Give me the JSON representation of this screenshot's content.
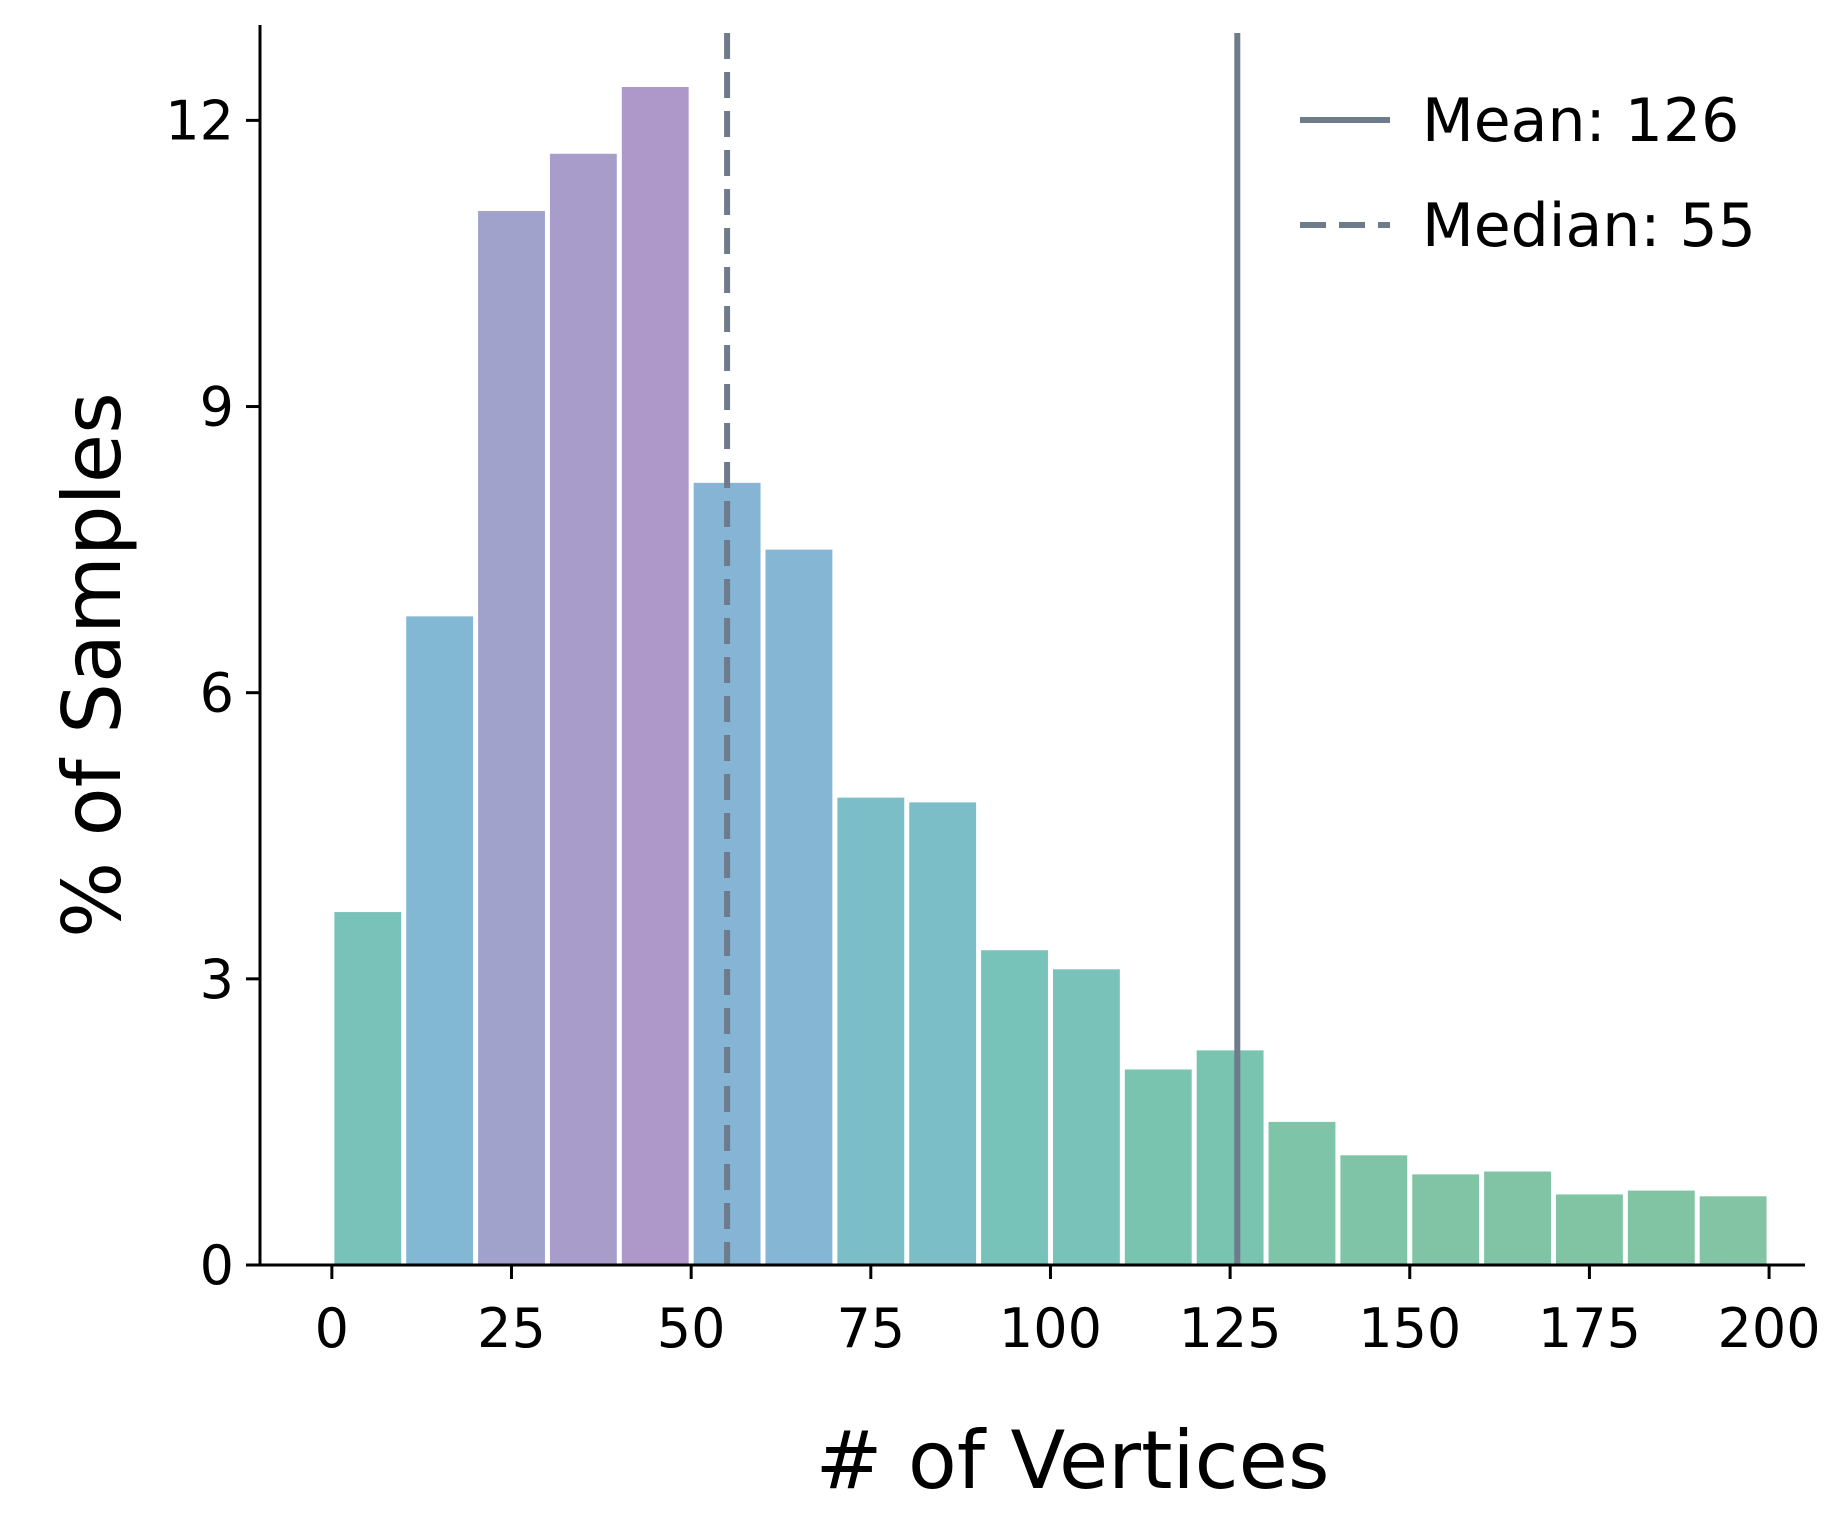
{
  "chart_data": {
    "type": "bar",
    "title": "",
    "xlabel": "# of Vertices",
    "ylabel": "% of Samples",
    "xlim": [
      -10,
      205
    ],
    "ylim": [
      0,
      13
    ],
    "x_ticks": [
      0,
      25,
      50,
      75,
      100,
      125,
      150,
      175,
      200
    ],
    "y_ticks": [
      0,
      3,
      6,
      9,
      12
    ],
    "grid": false,
    "legend_position": "top-right",
    "bin_width": 10,
    "bins": [
      {
        "start": 0,
        "end": 10,
        "value": 3.7,
        "color": "#79c2b9"
      },
      {
        "start": 10,
        "end": 20,
        "value": 6.8,
        "color": "#82b8d3"
      },
      {
        "start": 20,
        "end": 30,
        "value": 11.05,
        "color": "#a0a2cc"
      },
      {
        "start": 30,
        "end": 40,
        "value": 11.65,
        "color": "#a89ccb"
      },
      {
        "start": 40,
        "end": 50,
        "value": 12.35,
        "color": "#ae98c9"
      },
      {
        "start": 50,
        "end": 60,
        "value": 8.2,
        "color": "#85b4d4"
      },
      {
        "start": 60,
        "end": 70,
        "value": 7.5,
        "color": "#85b6d3"
      },
      {
        "start": 70,
        "end": 80,
        "value": 4.9,
        "color": "#7bbec7"
      },
      {
        "start": 80,
        "end": 90,
        "value": 4.85,
        "color": "#7bbec7"
      },
      {
        "start": 90,
        "end": 100,
        "value": 3.3,
        "color": "#77c3b9"
      },
      {
        "start": 100,
        "end": 110,
        "value": 3.1,
        "color": "#78c2ba"
      },
      {
        "start": 110,
        "end": 120,
        "value": 2.05,
        "color": "#78c4ae"
      },
      {
        "start": 120,
        "end": 130,
        "value": 2.25,
        "color": "#79c3b1"
      },
      {
        "start": 130,
        "end": 140,
        "value": 1.5,
        "color": "#7dc4a8"
      },
      {
        "start": 140,
        "end": 150,
        "value": 1.15,
        "color": "#7fc4a7"
      },
      {
        "start": 150,
        "end": 160,
        "value": 0.95,
        "color": "#80c4a5"
      },
      {
        "start": 160,
        "end": 170,
        "value": 0.98,
        "color": "#80c4a5"
      },
      {
        "start": 170,
        "end": 180,
        "value": 0.74,
        "color": "#81c4a4"
      },
      {
        "start": 180,
        "end": 190,
        "value": 0.78,
        "color": "#81c4a4"
      },
      {
        "start": 190,
        "end": 200,
        "value": 0.72,
        "color": "#82c4a3"
      }
    ],
    "reference_lines": [
      {
        "name": "Mean: 126",
        "x": 126,
        "style": "solid",
        "color": "#6e7b8b"
      },
      {
        "name": "Median: 55",
        "x": 55,
        "style": "dashed",
        "color": "#6e7b8b"
      }
    ]
  }
}
